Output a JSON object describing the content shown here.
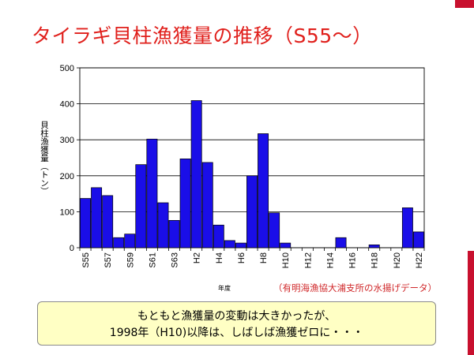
{
  "slide": {
    "title": "タイラギ貝柱漁獲量の推移（S55～）",
    "source_note": "（有明海漁協大浦支所の水揚げデータ）",
    "note_lines": [
      "もともと漁獲量の変動は大きかったが、",
      "1998年（H10)以降は、しばしば漁獲ゼロに・・・"
    ]
  },
  "colors": {
    "title": "#e0201c",
    "bar_fill": "#1a0ee8",
    "bar_stroke": "#000000",
    "note_bg": "#ffffc4",
    "accent_bar": "#c8102e"
  },
  "chart_data": {
    "type": "bar",
    "title": "",
    "xlabel": "年度",
    "ylabel": "貝柱漁獲量（トン）",
    "ylim": [
      0,
      500
    ],
    "yticks": [
      0,
      100,
      200,
      300,
      400,
      500
    ],
    "grid": true,
    "categories": [
      "S55",
      "S56",
      "S57",
      "S58",
      "S59",
      "S60",
      "S61",
      "S62",
      "S63",
      "H1",
      "H2",
      "H3",
      "H4",
      "H5",
      "H6",
      "H7",
      "H8",
      "H9",
      "H10",
      "H11",
      "H12",
      "H13",
      "H14",
      "H15",
      "H16",
      "H17",
      "H18",
      "H19",
      "H20",
      "H21",
      "H22"
    ],
    "tick_labels_shown": [
      "S55",
      "S57",
      "S59",
      "S61",
      "S63",
      "H2",
      "H4",
      "H6",
      "H8",
      "H10",
      "H12",
      "H14",
      "H16",
      "H18",
      "H20",
      "H22"
    ],
    "values": [
      137,
      167,
      145,
      28,
      38,
      231,
      302,
      125,
      76,
      247,
      409,
      237,
      63,
      20,
      13,
      200,
      317,
      97,
      13,
      0,
      0,
      0,
      0,
      28,
      0,
      0,
      8,
      0,
      0,
      111,
      44
    ]
  }
}
